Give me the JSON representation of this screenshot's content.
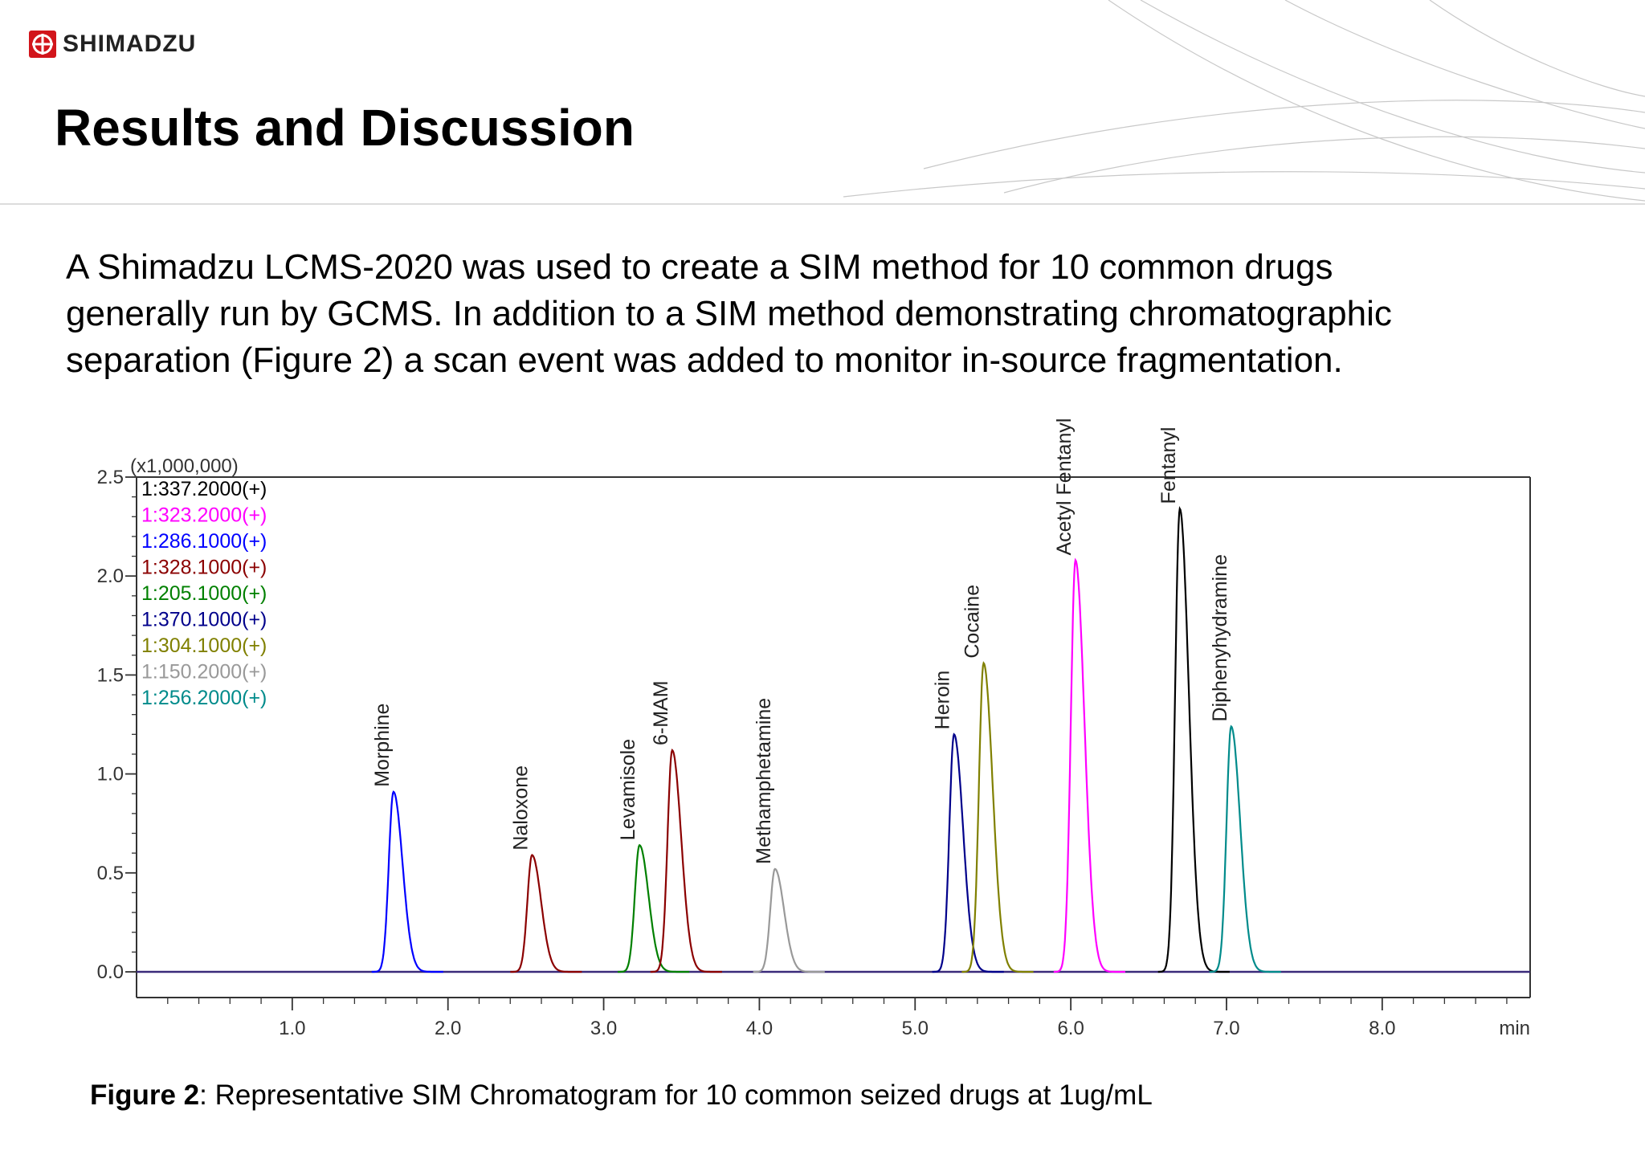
{
  "brand": {
    "name": "SHIMADZU",
    "color": "#d2151b"
  },
  "slide_title": "Results and Discussion",
  "paragraph": [
    "A Shimadzu LCMS-2020 was used to create a SIM method for 10 common drugs",
    "generally run by GCMS. In addition to a SIM method demonstrating chromatographic",
    "separation (Figure 2) a scan event was added to monitor in-source fragmentation."
  ],
  "caption": {
    "label": "Figure 2",
    "text": ": Representative SIM Chromatogram for 10 common seized drugs at 1ug/mL"
  },
  "chart_data": {
    "type": "line",
    "xlabel": "min",
    "ylabel": "",
    "y_multiplier_label": "(x1,000,000)",
    "xlim": [
      0.0,
      8.95
    ],
    "ylim": [
      0.0,
      2.5
    ],
    "x_ticks": [
      1.0,
      2.0,
      3.0,
      4.0,
      5.0,
      6.0,
      7.0,
      8.0
    ],
    "x_tick_labels": [
      "1.0",
      "2.0",
      "3.0",
      "4.0",
      "5.0",
      "6.0",
      "7.0",
      "8.0"
    ],
    "y_ticks": [
      0.0,
      0.5,
      1.0,
      1.5,
      2.0,
      2.5
    ],
    "y_tick_labels": [
      "0.0",
      "0.5",
      "1.0",
      "1.5",
      "2.0",
      "2.5"
    ],
    "grid": false,
    "legend_position": "top-left",
    "legend": [
      {
        "label": "1:337.2000(+)",
        "color": "#000000"
      },
      {
        "label": "1:323.2000(+)",
        "color": "#ff00ff"
      },
      {
        "label": "1:286.1000(+)",
        "color": "#0000ff"
      },
      {
        "label": "1:328.1000(+)",
        "color": "#8b0000"
      },
      {
        "label": "1:205.1000(+)",
        "color": "#008000"
      },
      {
        "label": "1:370.1000(+)",
        "color": "#00008b"
      },
      {
        "label": "1:304.1000(+)",
        "color": "#808000"
      },
      {
        "label": "1:150.2000(+)",
        "color": "#999999"
      },
      {
        "label": "1:256.2000(+)",
        "color": "#008b8b"
      }
    ],
    "peaks": [
      {
        "name": "Morphine",
        "rt": 1.65,
        "height": 0.91,
        "channel": "1:286.1000(+)",
        "color": "#0000ff"
      },
      {
        "name": "Naloxone",
        "rt": 2.54,
        "height": 0.59,
        "channel": "1:328.1000(+)",
        "color": "#8b0000"
      },
      {
        "name": "Levamisole",
        "rt": 3.23,
        "height": 0.64,
        "channel": "1:205.1000(+)",
        "color": "#008000"
      },
      {
        "name": "6-MAM",
        "rt": 3.44,
        "height": 1.12,
        "channel": "1:328.1000(+)",
        "color": "#8b0000"
      },
      {
        "name": "Methamphetamine",
        "rt": 4.1,
        "height": 0.52,
        "channel": "1:150.2000(+)",
        "color": "#999999"
      },
      {
        "name": "Heroin",
        "rt": 5.25,
        "height": 1.2,
        "channel": "1:370.1000(+)",
        "color": "#00008b"
      },
      {
        "name": "Cocaine",
        "rt": 5.44,
        "height": 1.56,
        "channel": "1:304.1000(+)",
        "color": "#808000"
      },
      {
        "name": "Acetyl Fentanyl",
        "rt": 6.03,
        "height": 2.08,
        "channel": "1:323.2000(+)",
        "color": "#ff00ff"
      },
      {
        "name": "Fentanyl",
        "rt": 6.7,
        "height": 2.34,
        "channel": "1:337.2000(+)",
        "color": "#000000"
      },
      {
        "name": "Diphenyhydramine",
        "rt": 7.03,
        "height": 1.24,
        "channel": "1:256.2000(+)",
        "color": "#008b8b"
      }
    ]
  }
}
